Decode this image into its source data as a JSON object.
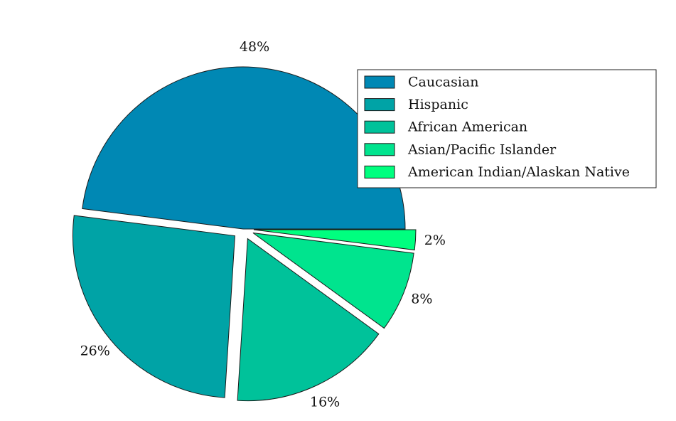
{
  "chart_data": {
    "type": "pie",
    "categories": [
      "Caucasian",
      "Hispanic",
      "African American",
      "Asian/Pacific Islander",
      "American Indian/Alaskan Native"
    ],
    "values": [
      48,
      26,
      16,
      8,
      2
    ],
    "data_labels": [
      "48%",
      "26%",
      "16%",
      "8%",
      "2%"
    ],
    "colors": [
      "#0088b4",
      "#00a3a6",
      "#00c29a",
      "#00e48e",
      "#00ff7f"
    ],
    "exploded": [
      false,
      true,
      true,
      true,
      true
    ],
    "legend_position": "upper-right",
    "title": ""
  }
}
